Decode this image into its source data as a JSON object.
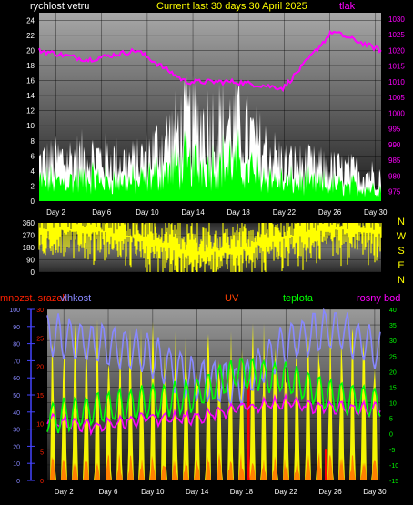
{
  "header": {
    "left_label": "rychlost vetru",
    "title": "Current last 30 days 30 April 2025",
    "right_label": "tlak"
  },
  "x_ticks": [
    "Day 2",
    "Day 6",
    "Day 10",
    "Day 14",
    "Day 18",
    "Day 22",
    "Day 26",
    "Day 30"
  ],
  "panel1_left_ticks": [
    "24",
    "22",
    "20",
    "18",
    "16",
    "14",
    "12",
    "10",
    "8",
    "6",
    "4",
    "2",
    "0"
  ],
  "panel1_right_ticks": [
    "1030",
    "1025",
    "1020",
    "1015",
    "1010",
    "1005",
    "1000",
    "995",
    "990",
    "985",
    "980",
    "975"
  ],
  "panel2_left_ticks": [
    "360",
    "270",
    "180",
    "90",
    "0"
  ],
  "compass": [
    "N",
    "W",
    "S",
    "E",
    "N"
  ],
  "panel3_labels": {
    "rain": "mnozst. srazek",
    "humidity": "vlhkost",
    "uv": "UV",
    "temp": "teplota",
    "dew": "rosny bod"
  },
  "panel3_hum_ticks": [
    "100",
    "90",
    "80",
    "70",
    "60",
    "50",
    "40",
    "30",
    "20",
    "10",
    "0"
  ],
  "panel3_uv_ticks": [
    "30",
    "25",
    "20",
    "15",
    "10",
    "5",
    "0"
  ],
  "panel3_temp_ticks": [
    "40",
    "35",
    "30",
    "25",
    "20",
    "15",
    "10",
    "5",
    "0",
    "-5",
    "-10",
    "-15"
  ],
  "colors": {
    "wind_gust": "#ffffff",
    "wind_avg": "#00ff00",
    "pressure": "#ff00ff",
    "direction": "#ffff00",
    "humidity": "#8888ff",
    "uv": "#ff2000",
    "temp": "#00ff00",
    "dew": "#ff00ff",
    "rain_axis": "#4444ff",
    "solar": "#ffff00"
  },
  "chart_data": [
    {
      "type": "area",
      "title": "Current last 30 days 30 April 2025",
      "xlabel": "",
      "x": [
        "Day 2",
        "Day 6",
        "Day 10",
        "Day 14",
        "Day 18",
        "Day 22",
        "Day 26",
        "Day 30"
      ],
      "ylim": [
        0,
        24
      ],
      "y2lim": [
        975,
        1030
      ],
      "series": [
        {
          "name": "rychlost vetru",
          "values": [
            6,
            7,
            6,
            12,
            12,
            6,
            5,
            4
          ]
        },
        {
          "name": "tlak",
          "values": [
            1020,
            1017,
            1020,
            1010,
            1010,
            1008,
            1026,
            1020
          ]
        }
      ]
    },
    {
      "type": "area",
      "ylim": [
        0,
        360
      ],
      "x": [
        "Day 2",
        "Day 6",
        "Day 10",
        "Day 14",
        "Day 18",
        "Day 22",
        "Day 26",
        "Day 30"
      ],
      "series": [
        {
          "values": [
            300,
            320,
            250,
            150,
            150,
            250,
            320,
            300
          ]
        }
      ]
    },
    {
      "type": "line",
      "x": [
        "Day 2",
        "Day 6",
        "Day 10",
        "Day 14",
        "Day 18",
        "Day 22",
        "Day 26",
        "Day 30"
      ],
      "ylim": [
        0,
        100
      ],
      "y2lim": [
        -15,
        40
      ],
      "series": [
        {
          "name": "vlhkost",
          "values": [
            85,
            80,
            75,
            60,
            55,
            80,
            90,
            75
          ]
        },
        {
          "name": "teplota",
          "values": [
            5,
            8,
            10,
            12,
            20,
            18,
            12,
            10
          ]
        },
        {
          "name": "rosny bod",
          "values": [
            5,
            2,
            5,
            5,
            8,
            10,
            8,
            8
          ]
        },
        {
          "name": "UV",
          "values": [
            0,
            0,
            0,
            0,
            8,
            0,
            0,
            0
          ]
        }
      ]
    }
  ]
}
